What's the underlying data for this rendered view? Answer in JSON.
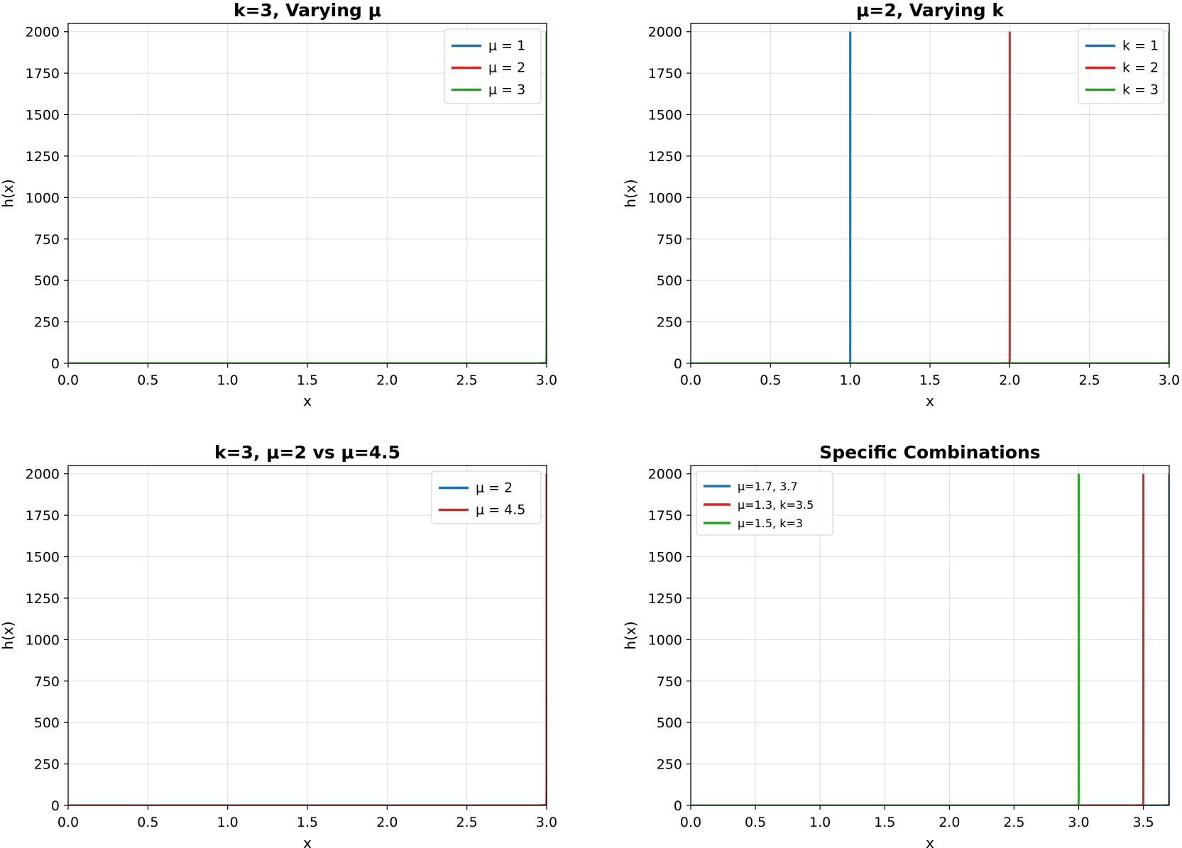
{
  "chart_data": [
    {
      "type": "line",
      "title": "k=3, Varying μ",
      "xlabel": "x",
      "ylabel": "h(x)",
      "xlim": [
        0,
        3.0
      ],
      "ylim": [
        0,
        2050
      ],
      "xticks": [
        "0.0",
        "0.5",
        "1.0",
        "1.5",
        "2.0",
        "2.5",
        "3.0"
      ],
      "yticks": [
        "0",
        "250",
        "500",
        "750",
        "1000",
        "1250",
        "1500",
        "1750",
        "2000"
      ],
      "grid": true,
      "legend_position": "top-right",
      "series": [
        {
          "name": "μ = 1",
          "color": "#1f6fb4",
          "asymptote": 3.0,
          "ymax": 2000
        },
        {
          "name": "μ = 2",
          "color": "#d62728",
          "asymptote": 3.0,
          "ymax": 2000
        },
        {
          "name": "μ = 3",
          "color": "#2ca02c",
          "asymptote": 3.0,
          "ymax": 2000
        }
      ]
    },
    {
      "type": "line",
      "title": "μ=2, Varying k",
      "xlabel": "x",
      "ylabel": "h(x)",
      "xlim": [
        0,
        3.0
      ],
      "ylim": [
        0,
        2050
      ],
      "xticks": [
        "0.0",
        "0.5",
        "1.0",
        "1.5",
        "2.0",
        "2.5",
        "3.0"
      ],
      "yticks": [
        "0",
        "250",
        "500",
        "750",
        "1000",
        "1250",
        "1500",
        "1750",
        "2000"
      ],
      "grid": true,
      "legend_position": "top-right",
      "series": [
        {
          "name": "k = 1",
          "color": "#1f6fb4",
          "asymptote": 1.0,
          "ymax": 2000
        },
        {
          "name": "k = 2",
          "color": "#d62728",
          "asymptote": 2.0,
          "ymax": 2000
        },
        {
          "name": "k = 3",
          "color": "#2ca02c",
          "asymptote": 3.0,
          "ymax": 2000
        }
      ]
    },
    {
      "type": "line",
      "title": "k=3, μ=2 vs μ=4.5",
      "xlabel": "x",
      "ylabel": "h(x)",
      "xlim": [
        0,
        3.0
      ],
      "ylim": [
        0,
        2050
      ],
      "xticks": [
        "0.0",
        "0.5",
        "1.0",
        "1.5",
        "2.0",
        "2.5",
        "3.0"
      ],
      "yticks": [
        "0",
        "250",
        "500",
        "750",
        "1000",
        "1250",
        "1500",
        "1750",
        "2000"
      ],
      "grid": true,
      "legend_position": "top-right",
      "series": [
        {
          "name": "μ = 2",
          "color": "#1f6fb4",
          "asymptote": 3.0,
          "ymax": 2000
        },
        {
          "name": "μ = 4.5",
          "color": "#d62728",
          "asymptote": 3.0,
          "ymax": 2000
        }
      ]
    },
    {
      "type": "line",
      "title": "Specific Combinations",
      "xlabel": "x",
      "ylabel": "h(x)",
      "xlim": [
        0,
        3.7
      ],
      "ylim": [
        0,
        2050
      ],
      "xticks": [
        "0.0",
        "0.5",
        "1.0",
        "1.5",
        "2.0",
        "2.5",
        "3.0",
        "3.5"
      ],
      "yticks": [
        "0",
        "250",
        "500",
        "750",
        "1000",
        "1250",
        "1500",
        "1750",
        "2000"
      ],
      "grid": true,
      "legend_position": "top-left",
      "series": [
        {
          "name": "μ=1.7, 3.7",
          "color": "#1f6fb4",
          "asymptote": 3.7,
          "ymax": 2000
        },
        {
          "name": "μ=1.3, k=3.5",
          "color": "#d62728",
          "asymptote": 3.5,
          "ymax": 2000
        },
        {
          "name": "μ=1.5, k=3",
          "color": "#2ca02c",
          "asymptote": 3.0,
          "ymax": 2000
        }
      ]
    }
  ]
}
